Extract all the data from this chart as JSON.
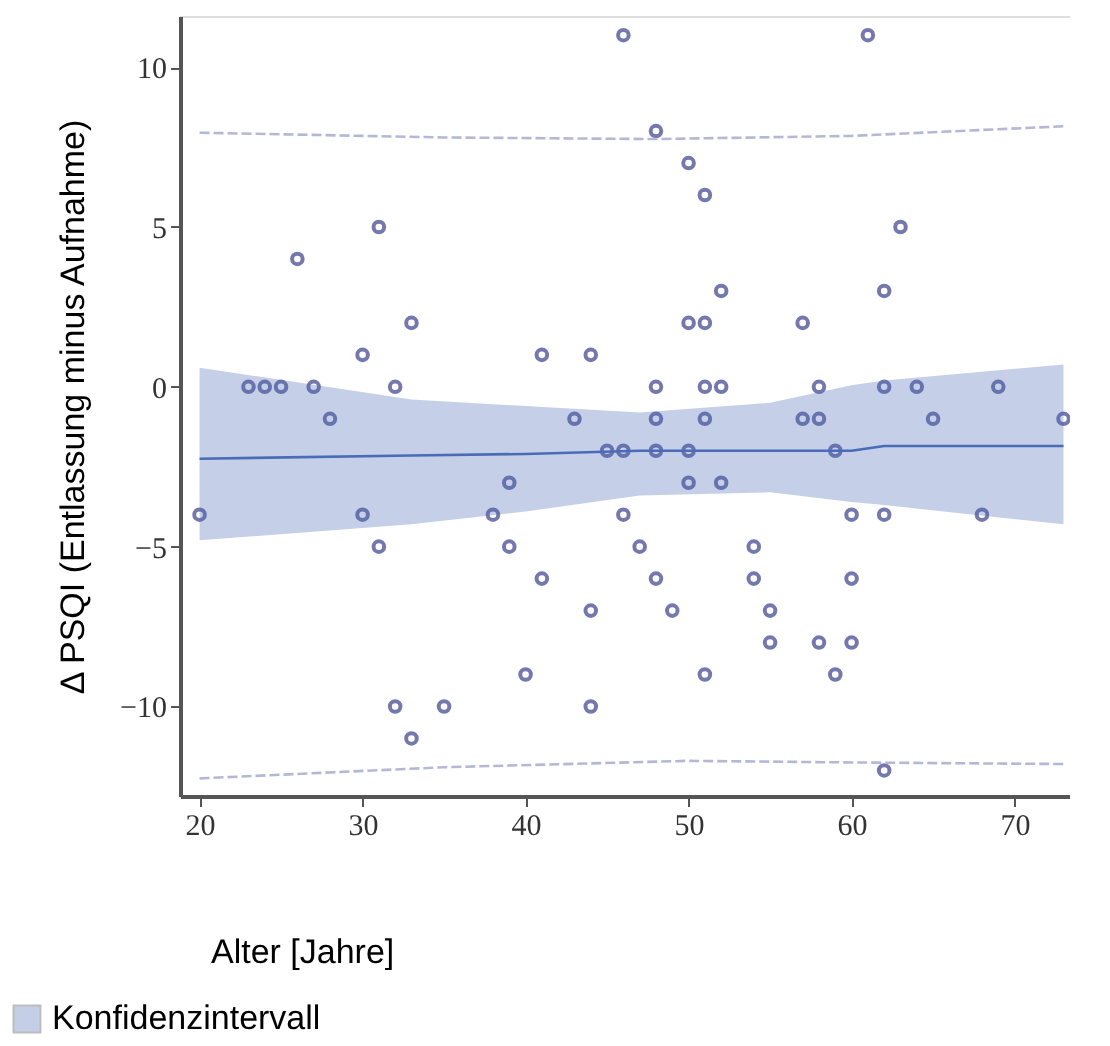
{
  "chart_data": {
    "type": "scatter",
    "xlabel": "Alter [Jahre]",
    "ylabel": "Δ PSQI (Entlassung minus Aufnahme)",
    "xlim": [
      18.8,
      73.4
    ],
    "ylim": [
      -12.8,
      11.6
    ],
    "xticks": [
      20,
      30,
      40,
      50,
      60,
      70
    ],
    "yticks": [
      -10,
      -5,
      0,
      5,
      10
    ],
    "grid": false,
    "legend": "bottom left",
    "series": [
      {
        "marker": "circle",
        "color": "#3b3f8a",
        "x": [
          46,
          61,
          48,
          50,
          51,
          31,
          63,
          26,
          52,
          62,
          33,
          50,
          51,
          57,
          30,
          41,
          44,
          23,
          24,
          25,
          27,
          32,
          48,
          51,
          52,
          58,
          62,
          64,
          69,
          28,
          43,
          48,
          51,
          57,
          58,
          65,
          73,
          45,
          46,
          48,
          50,
          59,
          39,
          50,
          52,
          20,
          30,
          38,
          46,
          60,
          62,
          68,
          31,
          39,
          47,
          54,
          41,
          48,
          54,
          60,
          44,
          49,
          55,
          55,
          58,
          60,
          40,
          51,
          59,
          32,
          35,
          44,
          33,
          62
        ],
        "values": [
          11,
          11,
          8,
          7,
          6,
          5,
          5,
          4,
          3,
          3,
          2,
          2,
          2,
          2,
          1,
          1,
          1,
          0,
          0,
          0,
          0,
          0,
          0,
          0,
          0,
          0,
          0,
          0,
          0,
          -1,
          -1,
          -1,
          -1,
          -1,
          -1,
          -1,
          -1,
          -2,
          -2,
          -2,
          -2,
          -2,
          -3,
          -3,
          -3,
          -4,
          -4,
          -4,
          -4,
          -4,
          -4,
          -4,
          -5,
          -5,
          -5,
          -5,
          -6,
          -6,
          -6,
          -6,
          -7,
          -7,
          -7,
          -8,
          -8,
          -8,
          -9,
          -9,
          -9,
          -10,
          -10,
          -10,
          -11,
          -12
        ]
      },
      {
        "type": "line",
        "name": "Konfidenzintervall",
        "color": "#4a6bb5",
        "x": [
          20,
          33,
          40,
          47,
          55,
          60,
          62,
          73
        ],
        "values": [
          -2.25,
          -2.15,
          -2.1,
          -2.0,
          -2.0,
          -2.0,
          -1.85,
          -1.85
        ],
        "lower": [
          -4.8,
          -4.3,
          -3.9,
          -3.4,
          -3.3,
          -3.6,
          -3.7,
          -4.3
        ],
        "upper": [
          0.6,
          -0.4,
          -0.6,
          -0.8,
          -0.5,
          0.05,
          0.2,
          0.7
        ]
      },
      {
        "type": "line",
        "line_style": "dashed",
        "color": "#b4b8d6",
        "x": [
          20,
          35,
          48,
          60,
          73
        ],
        "values": [
          7.95,
          7.8,
          7.75,
          7.85,
          8.15
        ]
      },
      {
        "type": "line",
        "line_style": "dashed",
        "color": "#b4b8d6",
        "x": [
          20,
          35,
          50,
          60,
          73
        ],
        "values": [
          -12.25,
          -11.9,
          -11.7,
          -11.75,
          -11.8
        ]
      }
    ]
  }
}
